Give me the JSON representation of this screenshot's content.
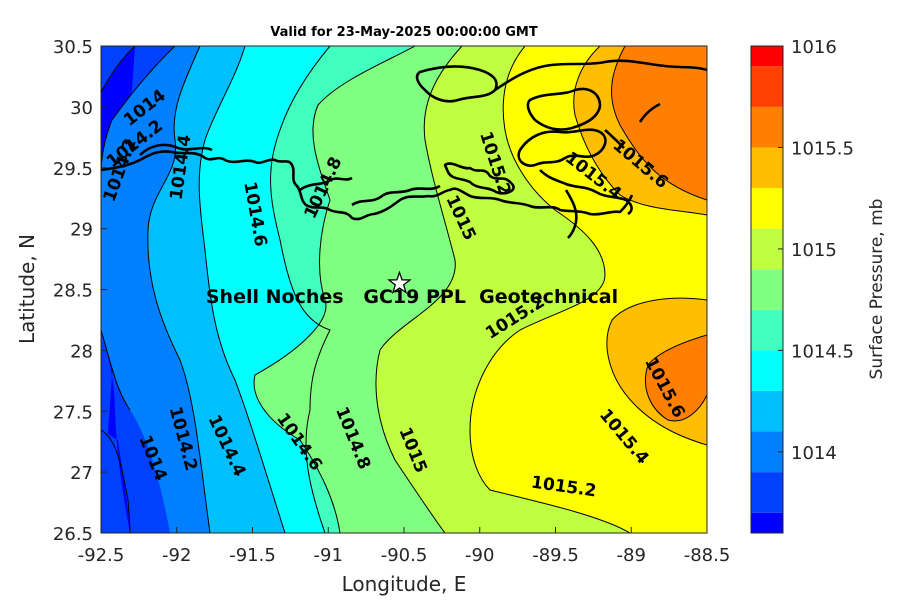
{
  "title": "Valid for 23-May-2025 00:00:00 GMT",
  "x_axis": {
    "label": "Longitude, E",
    "range": [
      -92.5,
      -88.5
    ],
    "ticks": [
      "-92.5",
      "-92",
      "-91.5",
      "-91",
      "-90.5",
      "-90",
      "-89.5",
      "-89",
      "-88.5"
    ]
  },
  "y_axis": {
    "label": "Latitude, N",
    "range": [
      26.5,
      30.5
    ],
    "ticks": [
      "26.5",
      "27",
      "27.5",
      "28",
      "28.5",
      "29",
      "29.5",
      "30",
      "30.5"
    ]
  },
  "colorbar": {
    "label": "Surface Pressure, mb",
    "range": [
      1013.6,
      1016.0
    ],
    "ticks": [
      "1014",
      "1014.5",
      "1015",
      "1015.5",
      "1016"
    ],
    "colors": [
      "#0000ff",
      "#0040ff",
      "#0080ff",
      "#00bfff",
      "#00ffff",
      "#40ffbf",
      "#80ff80",
      "#bfff40",
      "#ffff00",
      "#ffbf00",
      "#ff8000",
      "#ff4000",
      "#ff0000"
    ]
  },
  "annotation": {
    "label": "Shell Noches   GC19 PPL  Geotechnical",
    "marker": "star",
    "lon": -90.53,
    "lat": 28.55
  },
  "contour_labels": [
    "1014",
    "1014.2",
    "1014.2",
    "1014.4",
    "1014.6",
    "1014.8",
    "1015",
    "1015.2",
    "1015.4",
    "1015.6",
    "1014.2",
    "1014",
    "1014.4",
    "1014.6",
    "1014.8",
    "1015",
    "1015.2",
    "1015.4",
    "1015.6",
    "1015.2"
  ]
}
